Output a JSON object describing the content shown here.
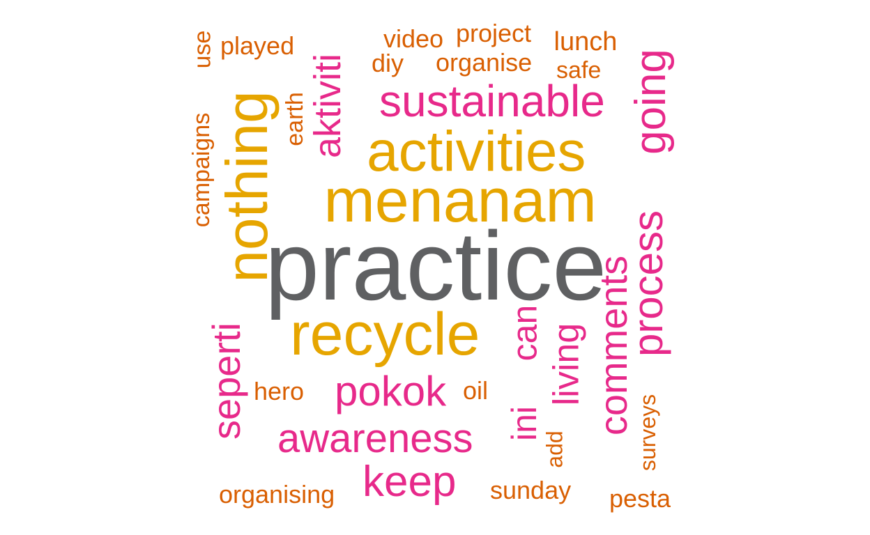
{
  "palette": {
    "grey": "#5f6062",
    "gold": "#e6a500",
    "pink": "#e7298a",
    "orange": "#d95f02"
  },
  "words": [
    {
      "text": "practice",
      "color": "grey"
    },
    {
      "text": "menanam",
      "color": "gold"
    },
    {
      "text": "activities",
      "color": "gold"
    },
    {
      "text": "recycle",
      "color": "gold"
    },
    {
      "text": "nothing",
      "color": "gold"
    },
    {
      "text": "sustainable",
      "color": "pink"
    },
    {
      "text": "aktiviti",
      "color": "pink"
    },
    {
      "text": "going",
      "color": "pink"
    },
    {
      "text": "process",
      "color": "pink"
    },
    {
      "text": "comments",
      "color": "pink"
    },
    {
      "text": "living",
      "color": "pink"
    },
    {
      "text": "ini",
      "color": "pink"
    },
    {
      "text": "can",
      "color": "pink"
    },
    {
      "text": "pokok",
      "color": "pink"
    },
    {
      "text": "awareness",
      "color": "pink"
    },
    {
      "text": "keep",
      "color": "pink"
    },
    {
      "text": "seperti",
      "color": "pink"
    },
    {
      "text": "use",
      "color": "orange"
    },
    {
      "text": "played",
      "color": "orange"
    },
    {
      "text": "video",
      "color": "orange"
    },
    {
      "text": "project",
      "color": "orange"
    },
    {
      "text": "lunch",
      "color": "orange"
    },
    {
      "text": "diy",
      "color": "orange"
    },
    {
      "text": "organise",
      "color": "orange"
    },
    {
      "text": "safe",
      "color": "orange"
    },
    {
      "text": "earth",
      "color": "orange"
    },
    {
      "text": "campaigns",
      "color": "orange"
    },
    {
      "text": "hero",
      "color": "orange"
    },
    {
      "text": "oil",
      "color": "orange"
    },
    {
      "text": "add",
      "color": "orange"
    },
    {
      "text": "surveys",
      "color": "orange"
    },
    {
      "text": "organising",
      "color": "orange"
    },
    {
      "text": "sunday",
      "color": "orange"
    },
    {
      "text": "pesta",
      "color": "orange"
    }
  ]
}
